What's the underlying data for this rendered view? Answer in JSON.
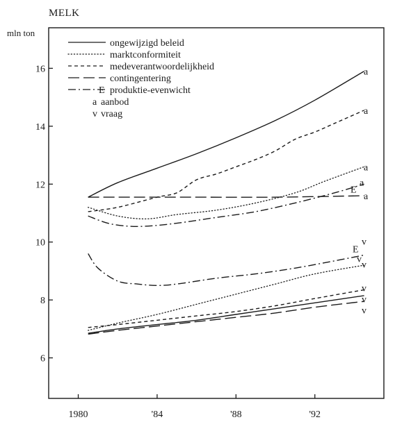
{
  "chart_data": {
    "type": "line",
    "title": "MELK",
    "ylabel": "mln ton",
    "xlabel": "",
    "xlim": [
      1978.5,
      1995.5
    ],
    "ylim": [
      4.6,
      17.4
    ],
    "x_ticks": [
      1980,
      1984,
      1988,
      1992
    ],
    "x_tick_labels": [
      "1980",
      "'84",
      "'88",
      "'92"
    ],
    "y_ticks": [
      6,
      8,
      10,
      12,
      14,
      16
    ],
    "y_tick_labels": [
      "6",
      "8",
      "10",
      "12",
      "14",
      "16"
    ],
    "grid": false,
    "legend_position": "top-left",
    "legend": [
      {
        "symbol": "",
        "label": "ongewijzigd beleid",
        "style": "solid"
      },
      {
        "symbol": "",
        "label": "marktconformiteit",
        "style": "dotted"
      },
      {
        "symbol": "",
        "label": "medeverantwoordelijkheid",
        "style": "dashed"
      },
      {
        "symbol": "",
        "label": "contingentering",
        "style": "longdash"
      },
      {
        "symbol": "E",
        "label": "produktie-evenwicht",
        "style": "dashdot"
      },
      {
        "symbol": "a",
        "label": "aanbod",
        "style": "none"
      },
      {
        "symbol": "v",
        "label": "vraag",
        "style": "none"
      }
    ],
    "series": [
      {
        "role": "a",
        "style": "solid",
        "x": [
          1980.5,
          1982,
          1984,
          1986,
          1988,
          1990,
          1992,
          1994.5
        ],
        "y": [
          11.55,
          12.05,
          12.55,
          13.05,
          13.6,
          14.2,
          14.9,
          15.9
        ]
      },
      {
        "role": "a",
        "style": "dashed",
        "x": [
          1980.5,
          1982,
          1984,
          1985,
          1986,
          1987,
          1988,
          1989,
          1990,
          1991,
          1992,
          1993,
          1994.5
        ],
        "y": [
          11.05,
          11.2,
          11.55,
          11.7,
          12.15,
          12.35,
          12.6,
          12.85,
          13.15,
          13.55,
          13.8,
          14.1,
          14.55
        ]
      },
      {
        "role": "a",
        "style": "dotted",
        "x": [
          1980.5,
          1982,
          1983.5,
          1985,
          1987,
          1989,
          1991,
          1992.5,
          1994.5
        ],
        "y": [
          11.2,
          10.9,
          10.8,
          10.95,
          11.1,
          11.35,
          11.7,
          12.1,
          12.6
        ]
      },
      {
        "role": "a",
        "style": "longdash",
        "x": [
          1980.5,
          1986,
          1990,
          1994.5
        ],
        "y": [
          11.55,
          11.55,
          11.55,
          11.6
        ]
      },
      {
        "role": "a",
        "style": "dashdot",
        "label": "E",
        "x": [
          1980.5,
          1981.5,
          1982.5,
          1983.5,
          1985,
          1987,
          1989,
          1991,
          1993,
          1994.5
        ],
        "y": [
          10.9,
          10.65,
          10.55,
          10.55,
          10.65,
          10.85,
          11.05,
          11.35,
          11.7,
          12.0
        ]
      },
      {
        "role": "v",
        "style": "dashdot",
        "label": "E",
        "x": [
          1980.5,
          1981,
          1982,
          1983,
          1984,
          1985,
          1987,
          1989,
          1991,
          1993,
          1994.5
        ],
        "y": [
          9.6,
          9.1,
          8.65,
          8.55,
          8.5,
          8.55,
          8.75,
          8.9,
          9.1,
          9.35,
          9.55
        ]
      },
      {
        "role": "v",
        "style": "dotted",
        "x": [
          1980.5,
          1982,
          1984,
          1986,
          1988,
          1990,
          1992,
          1994.5
        ],
        "y": [
          6.95,
          7.2,
          7.5,
          7.85,
          8.2,
          8.55,
          8.9,
          9.2
        ]
      },
      {
        "role": "v",
        "style": "dashed",
        "x": [
          1980.5,
          1982,
          1984,
          1986,
          1988,
          1990,
          1992,
          1994.5
        ],
        "y": [
          7.05,
          7.15,
          7.3,
          7.45,
          7.6,
          7.8,
          8.05,
          8.35
        ]
      },
      {
        "role": "v",
        "style": "solid",
        "x": [
          1980.5,
          1982,
          1984,
          1986,
          1988,
          1990,
          1992,
          1994.5
        ],
        "y": [
          6.85,
          7.0,
          7.15,
          7.3,
          7.5,
          7.7,
          7.9,
          8.15
        ]
      },
      {
        "role": "v",
        "style": "longdash",
        "x": [
          1980.5,
          1982,
          1984,
          1986,
          1988,
          1990,
          1992,
          1994.5
        ],
        "y": [
          6.82,
          6.95,
          7.1,
          7.25,
          7.4,
          7.55,
          7.75,
          7.95
        ]
      }
    ]
  }
}
